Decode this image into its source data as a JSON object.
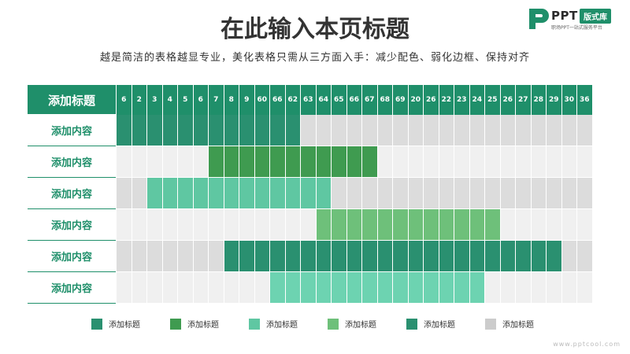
{
  "header": {
    "title": "在此输入本页标题",
    "subtitle": "越是简洁的表格越显专业，美化表格只需从三方面入手：减少配色、弱化边框、保持对齐"
  },
  "logo": {
    "text": "PPT",
    "badge": "版式库",
    "tagline": "职场PPT一站式服务平台"
  },
  "table": {
    "corner_label": "添加标题",
    "columns": [
      "6",
      "2",
      "3",
      "4",
      "5",
      "6",
      "7",
      "8",
      "9",
      "60",
      "66",
      "62",
      "63",
      "64",
      "65",
      "66",
      "67",
      "68",
      "69",
      "20",
      "26",
      "22",
      "23",
      "24",
      "25",
      "26",
      "27",
      "28",
      "29",
      "30",
      "36"
    ],
    "row_bg": [
      "#dcdcdc",
      "#f0f0f0",
      "#dcdcdc",
      "#f0f0f0",
      "#dcdcdc",
      "#f0f0f0"
    ],
    "rows": [
      {
        "label": "添加内容",
        "start": 0,
        "end": 11,
        "color": "#2a9070"
      },
      {
        "label": "添加内容",
        "start": 6,
        "end": 16,
        "color": "#3f9b50"
      },
      {
        "label": "添加内容",
        "start": 2,
        "end": 13,
        "color": "#5fc7a2"
      },
      {
        "label": "添加内容",
        "start": 13,
        "end": 24,
        "color": "#6ec07a"
      },
      {
        "label": "添加内容",
        "start": 7,
        "end": 28,
        "color": "#2a9070"
      },
      {
        "label": "添加内容",
        "start": 10,
        "end": 23,
        "color": "#6dd3b1"
      }
    ]
  },
  "legend": [
    {
      "label": "添加标题",
      "color": "#2a9070"
    },
    {
      "label": "添加标题",
      "color": "#3f9b50"
    },
    {
      "label": "添加标题",
      "color": "#5fc7a2"
    },
    {
      "label": "添加标题",
      "color": "#6ec07a"
    },
    {
      "label": "添加标题",
      "color": "#2a9070"
    },
    {
      "label": "添加标题",
      "color": "#cccccc"
    }
  ],
  "watermark": "www.pptcool.com"
}
